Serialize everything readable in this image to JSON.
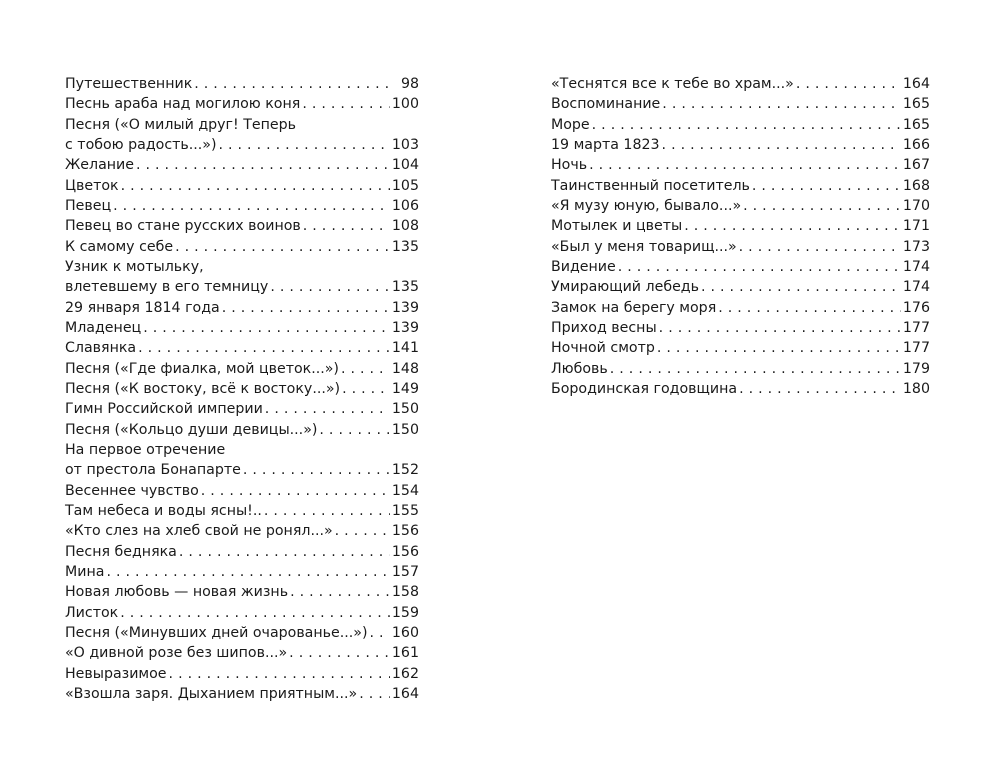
{
  "left_column": [
    {
      "title": "Путешественник",
      "page": "98"
    },
    {
      "title": "Песнь араба над могилою коня",
      "page": "100"
    },
    {
      "title_line1": "Песня  («О милый друг! Теперь",
      "title": "с тобою радость...»)",
      "page": "103"
    },
    {
      "title": "Желание",
      "page": "104"
    },
    {
      "title": "Цветок",
      "page": "105"
    },
    {
      "title": "Певец",
      "page": "106"
    },
    {
      "title": "Певец во стане русских воинов",
      "page": "108"
    },
    {
      "title": "К самому себе",
      "page": "135"
    },
    {
      "title_line1": "Узник к мотыльку,",
      "title": "влетевшему в его темницу",
      "page": "135"
    },
    {
      "title": "29 января 1814 года",
      "page": "139"
    },
    {
      "title": "Младенец",
      "page": "139"
    },
    {
      "title": "Славянка",
      "page": "141"
    },
    {
      "title": "Песня («Где фиалка, мой цветок...»)",
      "page": "148"
    },
    {
      "title": "Песня («К востоку, всё к востоку...»)",
      "page": "149"
    },
    {
      "title": "Гимн Российской империи",
      "page": "150"
    },
    {
      "title": "Песня («Кольцо души девицы...»)",
      "page": "150"
    },
    {
      "title_line1": "На первое отречение",
      "title": "от престола Бонапарте",
      "page": "152"
    },
    {
      "title": "Весеннее чувство",
      "page": "154"
    },
    {
      "title": "Там небеса и воды ясны!..",
      "page": "155"
    },
    {
      "title": "«Кто слез на хлеб свой не ронял...»",
      "page": "156"
    },
    {
      "title": "Песня бедняка",
      "page": "156"
    },
    {
      "title": "Мина",
      "page": "157"
    },
    {
      "title": "Новая любовь — новая жизнь",
      "page": "158"
    },
    {
      "title": "Листок",
      "page": "159"
    },
    {
      "title": "Песня («Минувших дней очарованье...»)",
      "page": "160"
    },
    {
      "title": "«О дивной розе без шипов...»",
      "page": "161"
    },
    {
      "title": "Невыразимое",
      "page": "162"
    },
    {
      "title": "«Взошла заря. Дыханием приятным...»",
      "page": "164"
    }
  ],
  "right_column": [
    {
      "title": "«Теснятся все к тебе во храм...»",
      "page": "164"
    },
    {
      "title": "Воспоминание",
      "page": "165"
    },
    {
      "title": "Море",
      "page": "165"
    },
    {
      "title": "19 марта 1823",
      "page": "166"
    },
    {
      "title": "Ночь",
      "page": "167"
    },
    {
      "title": "Таинственный посетитель",
      "page": "168"
    },
    {
      "title": "«Я музу юную, бывало...»",
      "page": "170"
    },
    {
      "title": "Мотылек и цветы",
      "page": "171"
    },
    {
      "title": "«Был у меня товарищ...»",
      "page": "173"
    },
    {
      "title": "Видение",
      "page": "174"
    },
    {
      "title": "Умирающий лебедь",
      "page": "174"
    },
    {
      "title": "Замок на берегу моря",
      "page": "176"
    },
    {
      "title": "Приход весны",
      "page": "177"
    },
    {
      "title": "Ночной смотр",
      "page": "177"
    },
    {
      "title": "Любовь",
      "page": "179"
    },
    {
      "title": "Бородинская годовщина",
      "page": "180"
    }
  ]
}
